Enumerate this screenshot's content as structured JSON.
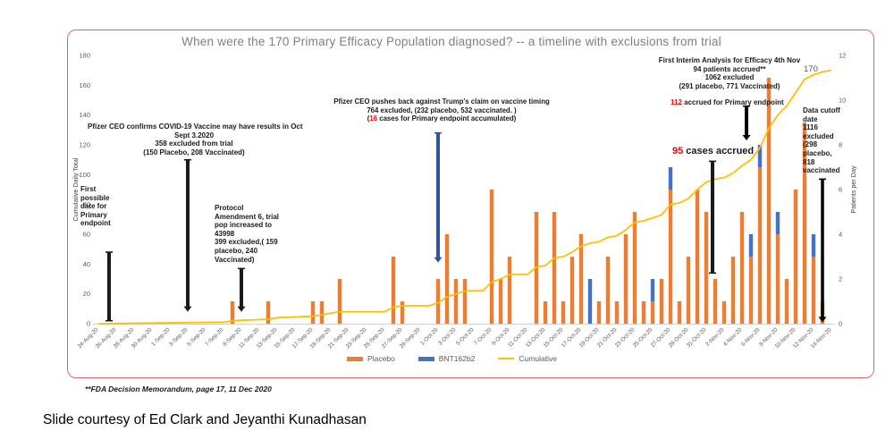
{
  "slide": {
    "caption": "Slide courtesy of Ed Clark and Jeyanthi Kunadhasan",
    "footnote": "**FDA Decision Memorandum, page 17, 11 Dec  2020",
    "frame_border_color": "#e06666"
  },
  "annotations": {
    "pfizer_confirms": {
      "lines": [
        "Pfizer CEO confirms COVID-19 Vaccine may have results in Oct",
        "Sept 3.2020",
        "358 excluded from trial",
        "(150 Placebo, 208 Vaccinated)"
      ]
    },
    "first_possible": {
      "lines": [
        "First",
        "possible",
        "date for",
        "Primary",
        "endpoint"
      ]
    },
    "protocol": {
      "lines": [
        "Protocol",
        "Amendment 6, trial",
        "pop increased to",
        "43998",
        "399 excluded,( 159",
        "placebo, 240",
        "Vaccinated)"
      ]
    },
    "pushback": {
      "lines": [
        "Pfizer CEO pushes back against Trump's claim on vaccine timing",
        "764 excluded, (232 placebo, 532 vaccinated. )"
      ],
      "line3_pre": "(",
      "line3_red": "16",
      "line3_post": " cases for Primary endpoint accumulated)"
    },
    "interim": {
      "lines": [
        "First Interim Analysis for Efficacy 4th Nov",
        "94 patients accrued**",
        "1062 excluded",
        "(291 placebo, 771 Vaccinated)"
      ]
    },
    "accrued_112": {
      "red": "112",
      "rest": " accrued  for Primary endpoint"
    },
    "cases_95": {
      "red": "95",
      "rest": " cases accrued"
    },
    "data_cutoff": {
      "lines": [
        "Data cutoff",
        "date",
        "1116",
        "excluded",
        "(298",
        "placebo,",
        "818",
        "vaccinated"
      ]
    },
    "line_end_label": "170"
  },
  "chart_data": {
    "type": "bar",
    "title": "When were the 170 Primary Efficacy Population diagnosed?  -- a timeline with  exclusions from trial",
    "title_color": "#7F7F7F",
    "left_axis": {
      "title": "Cumulative Daily Total",
      "min": 0,
      "max": 180,
      "ticks": [
        0,
        20,
        40,
        60,
        80,
        100,
        120,
        140,
        160,
        180
      ]
    },
    "right_axis": {
      "title": "Patients per Day",
      "min": 0,
      "max": 12,
      "ticks": [
        0,
        2,
        4,
        6,
        8,
        10,
        12
      ]
    },
    "x_first_date": "24-Aug-20",
    "x_tick_labels": [
      "24-Aug-20",
      "26-Aug-20",
      "28-Aug-20",
      "30-Aug-20",
      "1-Sep-20",
      "3-Sep-20",
      "5-Sep-20",
      "7-Sep-20",
      "9-Sep-20",
      "11-Sep-20",
      "13-Sep-20",
      "15-Sep-20",
      "17-Sep-20",
      "19-Sep-20",
      "21-Sep-20",
      "23-Sep-20",
      "25-Sep-20",
      "27-Sep-20",
      "29-Sep-20",
      "1-Oct-20",
      "3-Oct-20",
      "5-Oct-20",
      "7-Oct-20",
      "9-Oct-20",
      "11-Oct-20",
      "13-Oct-20",
      "15-Oct-20",
      "17-Oct-20",
      "19-Oct-20",
      "21-Oct-20",
      "23-Oct-20",
      "25-Oct-20",
      "27-Oct-20",
      "29-Oct-20",
      "31-Oct-20",
      "2-Nov-20",
      "4-Nov-20",
      "6-Nov-20",
      "8-Nov-20",
      "10-Nov-20",
      "12-Nov-20",
      "14-Nov-20"
    ],
    "series": [
      {
        "name": "Placebo",
        "type": "bar",
        "color": "#ED7D31",
        "axis": "right"
      },
      {
        "name": "BNT162b2",
        "type": "bar",
        "color": "#4472C4",
        "axis": "right"
      },
      {
        "name": "Cumulative",
        "type": "line",
        "color": "#FFC000",
        "axis": "left"
      }
    ],
    "bars": [
      {
        "day": 15,
        "date": "8-Sep-20",
        "placebo": 1,
        "bnt162b2": 0
      },
      {
        "day": 19,
        "date": "12-Sep-20",
        "placebo": 1,
        "bnt162b2": 0
      },
      {
        "day": 24,
        "date": "17-Sep-20",
        "placebo": 1,
        "bnt162b2": 0
      },
      {
        "day": 25,
        "date": "18-Sep-20",
        "placebo": 1,
        "bnt162b2": 0
      },
      {
        "day": 27,
        "date": "20-Sep-20",
        "placebo": 2,
        "bnt162b2": 0
      },
      {
        "day": 33,
        "date": "26-Sep-20",
        "placebo": 3,
        "bnt162b2": 0
      },
      {
        "day": 34,
        "date": "27-Sep-20",
        "placebo": 1,
        "bnt162b2": 0
      },
      {
        "day": 38,
        "date": "1-Oct-20",
        "placebo": 2,
        "bnt162b2": 0
      },
      {
        "day": 39,
        "date": "2-Oct-20",
        "placebo": 4,
        "bnt162b2": 0
      },
      {
        "day": 40,
        "date": "3-Oct-20",
        "placebo": 2,
        "bnt162b2": 0
      },
      {
        "day": 41,
        "date": "4-Oct-20",
        "placebo": 2,
        "bnt162b2": 0
      },
      {
        "day": 44,
        "date": "7-Oct-20",
        "placebo": 6,
        "bnt162b2": 0
      },
      {
        "day": 45,
        "date": "8-Oct-20",
        "placebo": 2,
        "bnt162b2": 0
      },
      {
        "day": 46,
        "date": "9-Oct-20",
        "placebo": 3,
        "bnt162b2": 0
      },
      {
        "day": 49,
        "date": "12-Oct-20",
        "placebo": 5,
        "bnt162b2": 0
      },
      {
        "day": 50,
        "date": "13-Oct-20",
        "placebo": 1,
        "bnt162b2": 0
      },
      {
        "day": 51,
        "date": "14-Oct-20",
        "placebo": 5,
        "bnt162b2": 0
      },
      {
        "day": 52,
        "date": "15-Oct-20",
        "placebo": 1,
        "bnt162b2": 0
      },
      {
        "day": 53,
        "date": "16-Oct-20",
        "placebo": 3,
        "bnt162b2": 0
      },
      {
        "day": 54,
        "date": "17-Oct-20",
        "placebo": 4,
        "bnt162b2": 0
      },
      {
        "day": 55,
        "date": "18-Oct-20",
        "placebo": 0,
        "bnt162b2": 2
      },
      {
        "day": 56,
        "date": "19-Oct-20",
        "placebo": 1,
        "bnt162b2": 0
      },
      {
        "day": 57,
        "date": "20-Oct-20",
        "placebo": 3,
        "bnt162b2": 0
      },
      {
        "day": 58,
        "date": "21-Oct-20",
        "placebo": 1,
        "bnt162b2": 0
      },
      {
        "day": 59,
        "date": "22-Oct-20",
        "placebo": 4,
        "bnt162b2": 0
      },
      {
        "day": 60,
        "date": "23-Oct-20",
        "placebo": 5,
        "bnt162b2": 0
      },
      {
        "day": 61,
        "date": "24-Oct-20",
        "placebo": 1,
        "bnt162b2": 0
      },
      {
        "day": 62,
        "date": "25-Oct-20",
        "placebo": 1,
        "bnt162b2": 1
      },
      {
        "day": 63,
        "date": "26-Oct-20",
        "placebo": 2,
        "bnt162b2": 0
      },
      {
        "day": 64,
        "date": "27-Oct-20",
        "placebo": 6,
        "bnt162b2": 1
      },
      {
        "day": 65,
        "date": "28-Oct-20",
        "placebo": 1,
        "bnt162b2": 0
      },
      {
        "day": 66,
        "date": "29-Oct-20",
        "placebo": 3,
        "bnt162b2": 0
      },
      {
        "day": 67,
        "date": "30-Oct-20",
        "placebo": 6,
        "bnt162b2": 0
      },
      {
        "day": 68,
        "date": "31-Oct-20",
        "placebo": 5,
        "bnt162b2": 0
      },
      {
        "day": 69,
        "date": "1-Nov-20",
        "placebo": 2,
        "bnt162b2": 0
      },
      {
        "day": 70,
        "date": "2-Nov-20",
        "placebo": 1,
        "bnt162b2": 0
      },
      {
        "day": 71,
        "date": "3-Nov-20",
        "placebo": 3,
        "bnt162b2": 0
      },
      {
        "day": 72,
        "date": "4-Nov-20",
        "placebo": 5,
        "bnt162b2": 0
      },
      {
        "day": 73,
        "date": "5-Nov-20",
        "placebo": 3,
        "bnt162b2": 1
      },
      {
        "day": 74,
        "date": "6-Nov-20",
        "placebo": 7,
        "bnt162b2": 1
      },
      {
        "day": 75,
        "date": "7-Nov-20",
        "placebo": 11,
        "bnt162b2": 0
      },
      {
        "day": 76,
        "date": "8-Nov-20",
        "placebo": 4,
        "bnt162b2": 1
      },
      {
        "day": 77,
        "date": "9-Nov-20",
        "placebo": 2,
        "bnt162b2": 0
      },
      {
        "day": 78,
        "date": "10-Nov-20",
        "placebo": 6,
        "bnt162b2": 0
      },
      {
        "day": 79,
        "date": "11-Nov-20",
        "placebo": 9,
        "bnt162b2": 0
      },
      {
        "day": 80,
        "date": "12-Nov-20",
        "placebo": 3,
        "bnt162b2": 1
      },
      {
        "day": 81,
        "date": "13-Nov-20",
        "placebo": 1,
        "bnt162b2": 0
      }
    ],
    "cumulative_points": [
      [
        0,
        0
      ],
      [
        14,
        1
      ],
      [
        15,
        2
      ],
      [
        19,
        3
      ],
      [
        20,
        4
      ],
      [
        24,
        5
      ],
      [
        25,
        6
      ],
      [
        27,
        8
      ],
      [
        32,
        8
      ],
      [
        33,
        11
      ],
      [
        34,
        12
      ],
      [
        37,
        12
      ],
      [
        38,
        14
      ],
      [
        39,
        18
      ],
      [
        40,
        20
      ],
      [
        41,
        22
      ],
      [
        43,
        22
      ],
      [
        44,
        28
      ],
      [
        45,
        30
      ],
      [
        46,
        33
      ],
      [
        48,
        33
      ],
      [
        49,
        38
      ],
      [
        50,
        39
      ],
      [
        51,
        44
      ],
      [
        52,
        45
      ],
      [
        53,
        48
      ],
      [
        54,
        52
      ],
      [
        55,
        54
      ],
      [
        56,
        55
      ],
      [
        57,
        58
      ],
      [
        58,
        59
      ],
      [
        59,
        63
      ],
      [
        60,
        68
      ],
      [
        61,
        69
      ],
      [
        62,
        71
      ],
      [
        63,
        73
      ],
      [
        64,
        80
      ],
      [
        65,
        81
      ],
      [
        66,
        84
      ],
      [
        67,
        90
      ],
      [
        68,
        95
      ],
      [
        69,
        97
      ],
      [
        70,
        98
      ],
      [
        71,
        101
      ],
      [
        72,
        106
      ],
      [
        73,
        110
      ],
      [
        74,
        118
      ],
      [
        75,
        131
      ],
      [
        76,
        140
      ],
      [
        77,
        146
      ],
      [
        78,
        155
      ],
      [
        79,
        164
      ],
      [
        80,
        167
      ],
      [
        81,
        169
      ],
      [
        82,
        170
      ]
    ],
    "markers": [
      {
        "kind": "line",
        "day": 1.2,
        "from": 48,
        "to": 2,
        "color": "#1a1a1a",
        "w": 4
      },
      {
        "kind": "arrow",
        "day": 10,
        "from": 110,
        "to": 8,
        "color": "#1a1a1a",
        "w": 4
      },
      {
        "kind": "arrow",
        "day": 16,
        "from": 37,
        "to": 8,
        "color": "#1a1a1a",
        "w": 4
      },
      {
        "kind": "arrow",
        "day": 38,
        "from": 128,
        "to": 41,
        "color": "#2F5597",
        "w": 4
      },
      {
        "kind": "line",
        "day": 68.7,
        "from": 109,
        "to": 34,
        "color": "#1a1a1a",
        "w": 4
      },
      {
        "kind": "arrow",
        "day": 72.5,
        "from": 146,
        "to": 123,
        "color": "#000000",
        "w": 4
      },
      {
        "kind": "arrow",
        "day": 81,
        "from": 97,
        "to": 1,
        "color": "#000000",
        "w": 3.5
      }
    ],
    "grid": false,
    "legend_position": "bottom"
  }
}
